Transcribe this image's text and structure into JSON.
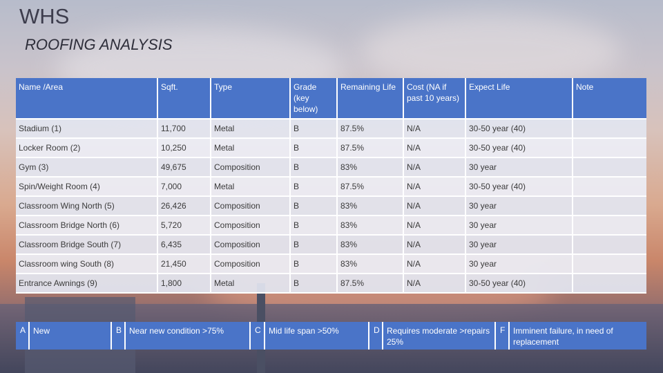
{
  "title": "WHS",
  "subtitle": "ROOFING ANALYSIS",
  "colors": {
    "header_blue": "#4a74c8"
  },
  "table": {
    "headers": [
      "Name /Area",
      "Sqft.",
      "Type",
      "Grade (key below)",
      "Remaining Life",
      "Cost (NA if past 10 years)",
      "Expect Life",
      "Note"
    ],
    "rows": [
      [
        "Stadium (1)",
        "11,700",
        "Metal",
        "B",
        "87.5%",
        "N/A",
        "30-50 year (40)",
        ""
      ],
      [
        "Locker Room (2)",
        "10,250",
        "Metal",
        "B",
        "87.5%",
        "N/A",
        "30-50 year (40)",
        ""
      ],
      [
        "Gym (3)",
        "49,675",
        "Composition",
        "B",
        "83%",
        "N/A",
        "30 year",
        ""
      ],
      [
        "Spin/Weight Room (4)",
        "7,000",
        "Metal",
        "B",
        "87.5%",
        "N/A",
        "30-50 year (40)",
        ""
      ],
      [
        "Classroom Wing North (5)",
        "26,426",
        "Composition",
        "B",
        "83%",
        "N/A",
        "30 year",
        ""
      ],
      [
        "Classroom Bridge North (6)",
        "5,720",
        "Composition",
        "B",
        "83%",
        "N/A",
        "30 year",
        ""
      ],
      [
        "Classroom Bridge South (7)",
        "6,435",
        "Composition",
        "B",
        "83%",
        "N/A",
        "30 year",
        ""
      ],
      [
        "Classroom wing South (8)",
        "21,450",
        "Composition",
        "B",
        "83%",
        "N/A",
        "30 year",
        ""
      ],
      [
        "Entrance Awnings (9)",
        "1,800",
        "Metal",
        "B",
        "87.5%",
        "N/A",
        "30-50 year (40)",
        ""
      ]
    ]
  },
  "legend": [
    {
      "letter": "A",
      "text": "New"
    },
    {
      "letter": "B",
      "text": "Near new condition >75%"
    },
    {
      "letter": "C",
      "text": "Mid life span >50%"
    },
    {
      "letter": "D",
      "text": "Requires moderate >repairs 25%"
    },
    {
      "letter": "F",
      "text": "Imminent failure, in need of replacement"
    }
  ]
}
